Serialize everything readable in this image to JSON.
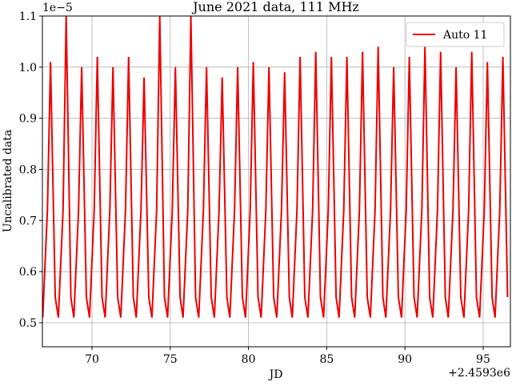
{
  "chart_data": {
    "type": "line",
    "title": "June 2021 data, 111 MHz",
    "x_label": "JD",
    "y_label": "Uncalibrated data",
    "y_offset_text": "1e−5",
    "x_offset_text": "+2.4593e6",
    "x": [
      66.85,
      67.15,
      67.35,
      67.65,
      67.85,
      68.15,
      68.35,
      68.65,
      68.84,
      69.14,
      69.34,
      69.64,
      69.84,
      70.14,
      70.34,
      70.64,
      70.84,
      71.14,
      71.34,
      71.64,
      71.84,
      72.14,
      72.34,
      72.64,
      72.83,
      73.13,
      73.33,
      73.63,
      73.83,
      74.13,
      74.33,
      74.63,
      74.83,
      75.13,
      75.33,
      75.63,
      75.82,
      76.12,
      76.32,
      76.62,
      76.82,
      77.12,
      77.32,
      77.62,
      77.82,
      78.12,
      78.32,
      78.62,
      78.81,
      79.11,
      79.31,
      79.61,
      79.81,
      80.11,
      80.31,
      80.61,
      80.81,
      81.11,
      81.31,
      81.61,
      81.81,
      82.11,
      82.31,
      82.61,
      82.8,
      83.1,
      83.3,
      83.6,
      83.8,
      84.1,
      84.3,
      84.6,
      84.8,
      85.1,
      85.3,
      85.6,
      85.79,
      86.09,
      86.29,
      86.59,
      86.79,
      87.09,
      87.29,
      87.59,
      87.79,
      88.09,
      88.29,
      88.59,
      88.78,
      89.08,
      89.28,
      89.58,
      89.78,
      90.08,
      90.28,
      90.58,
      90.78,
      91.08,
      91.28,
      91.58,
      91.78,
      92.08,
      92.28,
      92.58,
      92.77,
      93.07,
      93.27,
      93.57,
      93.77,
      94.07,
      94.27,
      94.57,
      94.77,
      95.07,
      95.27,
      95.57,
      95.76,
      96.06,
      96.26,
      96.56
    ],
    "series": [
      {
        "name": "Auto 11",
        "color": "#ee0000",
        "values": [
          0.51,
          0.72,
          1.01,
          0.55,
          0.51,
          0.72,
          1.1,
          0.55,
          0.51,
          0.72,
          1.0,
          0.55,
          0.51,
          0.72,
          1.02,
          0.55,
          0.51,
          0.72,
          1.0,
          0.55,
          0.51,
          0.72,
          1.02,
          0.55,
          0.51,
          0.72,
          0.98,
          0.55,
          0.51,
          0.72,
          1.1,
          0.55,
          0.51,
          0.72,
          1.0,
          0.55,
          0.51,
          0.72,
          1.1,
          0.55,
          0.51,
          0.72,
          1.0,
          0.55,
          0.51,
          0.72,
          0.98,
          0.55,
          0.51,
          0.72,
          1.0,
          0.55,
          0.51,
          0.72,
          1.01,
          0.55,
          0.51,
          0.72,
          1.0,
          0.55,
          0.51,
          0.72,
          0.99,
          0.55,
          0.51,
          0.72,
          1.02,
          0.55,
          0.51,
          0.72,
          1.03,
          0.55,
          0.51,
          0.72,
          1.02,
          0.55,
          0.51,
          0.72,
          1.02,
          0.55,
          0.51,
          0.72,
          1.03,
          0.55,
          0.51,
          0.72,
          1.04,
          0.55,
          0.51,
          0.72,
          1.0,
          0.55,
          0.51,
          0.72,
          1.02,
          0.55,
          0.51,
          0.72,
          1.04,
          0.55,
          0.51,
          0.72,
          1.03,
          0.55,
          0.51,
          0.72,
          1.0,
          0.55,
          0.51,
          0.72,
          1.03,
          0.55,
          0.51,
          0.72,
          1.01,
          0.55,
          0.51,
          0.72,
          1.02,
          0.55
        ]
      }
    ],
    "xlim": [
      66.83,
      96.74
    ],
    "ylim": [
      0.453,
      1.1
    ],
    "xticks": [
      70,
      75,
      80,
      85,
      90,
      95
    ],
    "yticks": [
      0.5,
      0.6,
      0.7,
      0.8,
      0.9,
      {
        "value": 1,
        "label": "1.0"
      },
      1.1
    ],
    "grid": true,
    "legend": "upper right"
  }
}
